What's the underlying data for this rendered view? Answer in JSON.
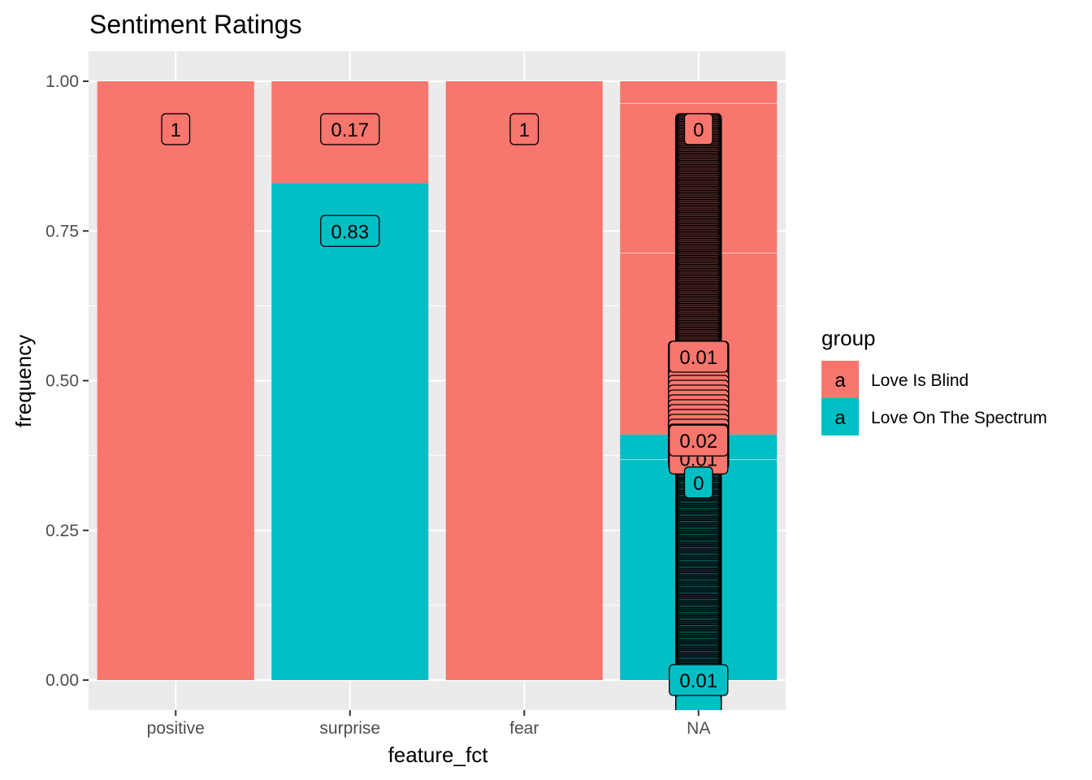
{
  "chart_data": {
    "type": "bar",
    "stacked": "fill",
    "title": "Sentiment Ratings",
    "xlabel": "feature_fct",
    "ylabel": "frequency",
    "categories": [
      "positive",
      "surprise",
      "fear",
      "NA"
    ],
    "ylim": [
      -0.05,
      1.05
    ],
    "yticks": [
      0,
      0.25,
      0.5,
      0.75,
      1
    ],
    "ytick_labels": [
      "0.00",
      "0.25",
      "0.50",
      "0.75",
      "1.00"
    ],
    "grid": true,
    "legend": {
      "title": "group",
      "placement": "right",
      "key_glyph": "a",
      "entries": [
        "Love Is Blind",
        "Love On The Spectrum"
      ]
    },
    "series": [
      {
        "name": "Love Is Blind",
        "color": "#F8766D",
        "values": [
          1,
          0.17,
          1,
          0.59
        ]
      },
      {
        "name": "Love On The Spectrum",
        "color": "#00BFC4",
        "values": [
          0,
          0.83,
          0,
          0.41
        ]
      }
    ],
    "na_segment_boundaries": [
      0.963,
      0.713,
      0.368
    ],
    "data_labels": [
      {
        "category": "positive",
        "text": "1",
        "y": 0.92,
        "fill": "#F8766D"
      },
      {
        "category": "surprise",
        "text": "0.17",
        "y": 0.92,
        "fill": "#F8766D"
      },
      {
        "category": "surprise",
        "text": "0.83",
        "y": 0.75,
        "fill": "#00BFC4"
      },
      {
        "category": "fear",
        "text": "1",
        "y": 0.92,
        "fill": "#F8766D"
      },
      {
        "category": "NA",
        "text": "0",
        "y": 0.92,
        "fill": "#F8766D"
      },
      {
        "category": "NA",
        "text": "0.01",
        "y": 0.54,
        "fill": "#F8766D"
      },
      {
        "category": "NA",
        "text": "0.01",
        "y": 0.37,
        "fill": "#F8766D"
      },
      {
        "category": "NA",
        "text": "0.02",
        "y": 0.4,
        "fill": "#F8766D"
      },
      {
        "category": "NA",
        "text": "0",
        "y": 0.33,
        "fill": "#00BFC4"
      },
      {
        "category": "NA",
        "text": "0.01",
        "y": 0,
        "fill": "#00BFC4"
      }
    ],
    "na_label_stack": {
      "lobs_upper": {
        "from": 0.92,
        "to": 0.54,
        "fill": "#F8766D"
      },
      "lobs_mid": {
        "from": 0.54,
        "to": 0.37,
        "fill": "#F8766D"
      },
      "lots_upper": {
        "from": 0.33,
        "to": 0.0,
        "fill": "#00BFC4"
      },
      "lots_lower": {
        "from": 0.0,
        "to": -0.05,
        "fill": "#00BFC4"
      }
    }
  }
}
